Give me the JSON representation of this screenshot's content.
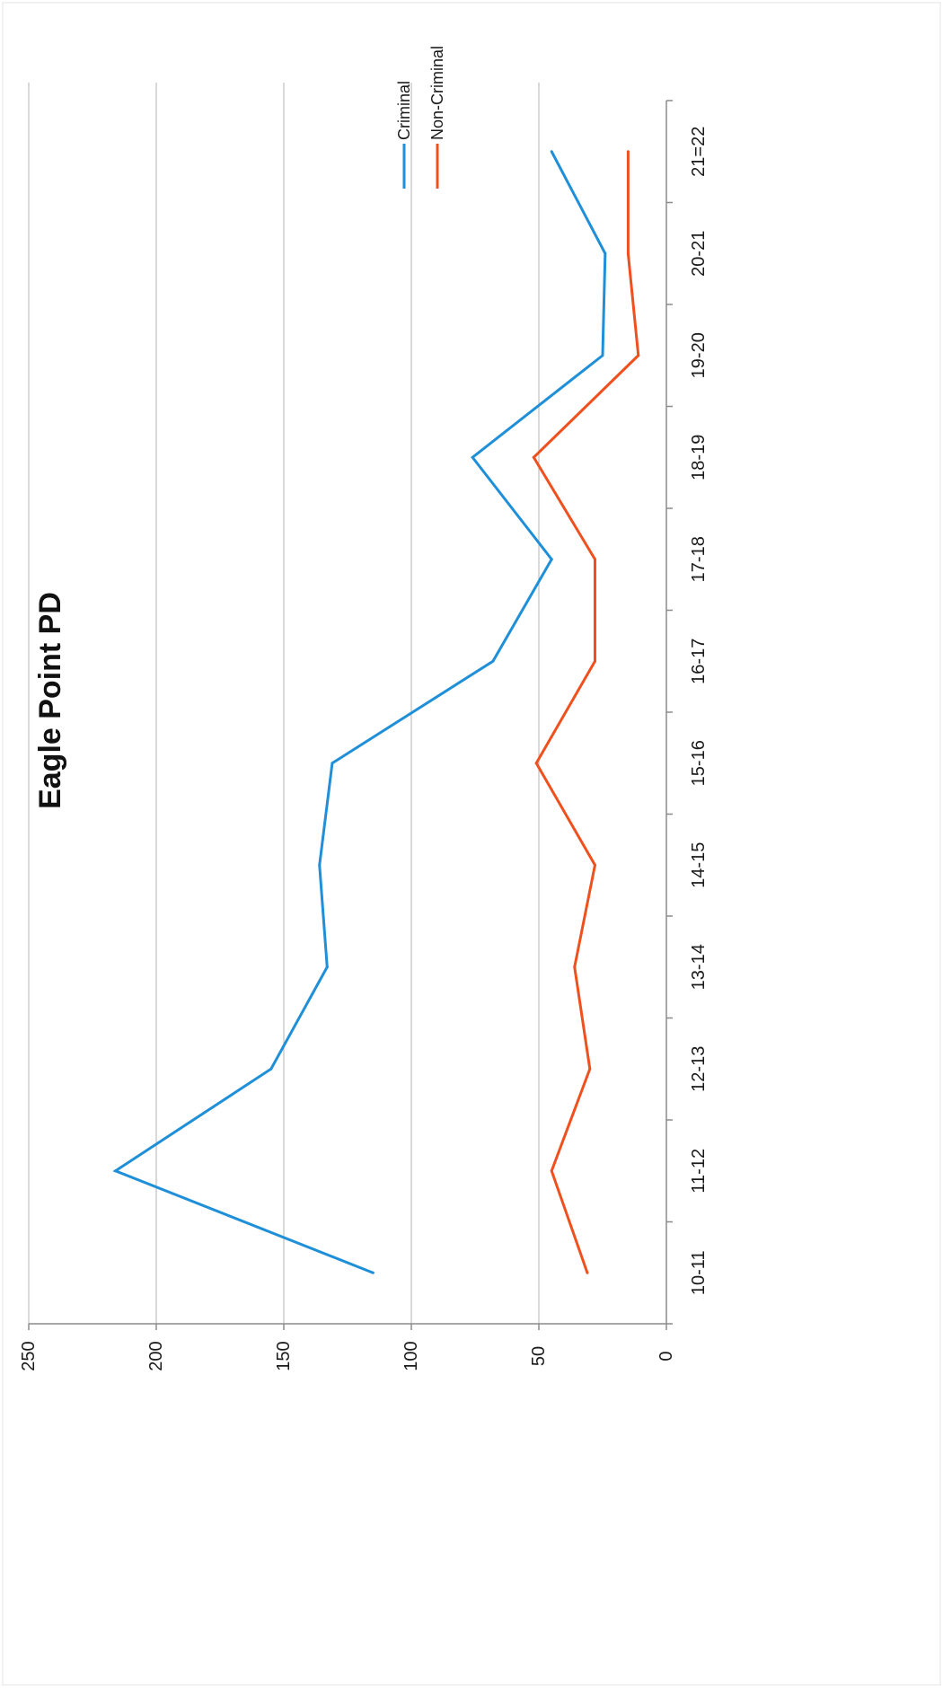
{
  "chart_data": {
    "type": "line",
    "title": "Eagle Point PD",
    "xlabel": "",
    "ylabel": "",
    "categories": [
      "10-11",
      "11-12",
      "12-13",
      "13-14",
      "14-15",
      "15-16",
      "16-17",
      "17-18",
      "18-19",
      "19-20",
      "20-21",
      "21=22"
    ],
    "y_ticks": [
      "0",
      "50",
      "100",
      "150",
      "200",
      "250"
    ],
    "ylim": [
      0,
      250
    ],
    "grid": true,
    "orientation": "rotated 90 degrees clockwise",
    "legend_position": "top-right",
    "series": [
      {
        "name": "Criminal",
        "color": "#1f8fd8",
        "values": [
          115,
          216,
          155,
          133,
          136,
          131,
          68,
          45,
          76,
          25,
          24,
          45
        ]
      },
      {
        "name": "Non-Criminal",
        "color": "#f0501e",
        "values": [
          31,
          45,
          30,
          36,
          28,
          51,
          28,
          28,
          52,
          11,
          15,
          15
        ]
      }
    ]
  }
}
